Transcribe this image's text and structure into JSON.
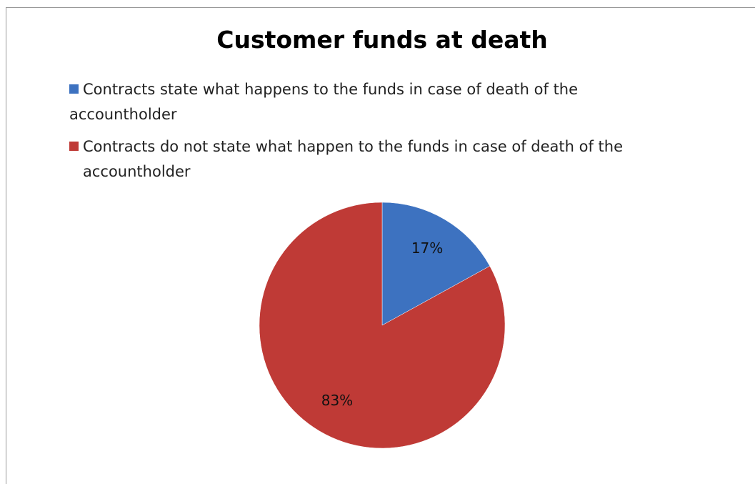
{
  "chart_data": {
    "type": "pie",
    "title": "Customer funds at death",
    "categories": [
      "Contracts state what happens to the funds in case of death of the accountholder",
      "Contracts do not state what happen to the funds in case of death of the accountholder"
    ],
    "values": [
      17,
      83
    ],
    "value_labels": [
      "17%",
      "83%"
    ],
    "colors": [
      "#3d72c0",
      "#bf3a36"
    ]
  }
}
